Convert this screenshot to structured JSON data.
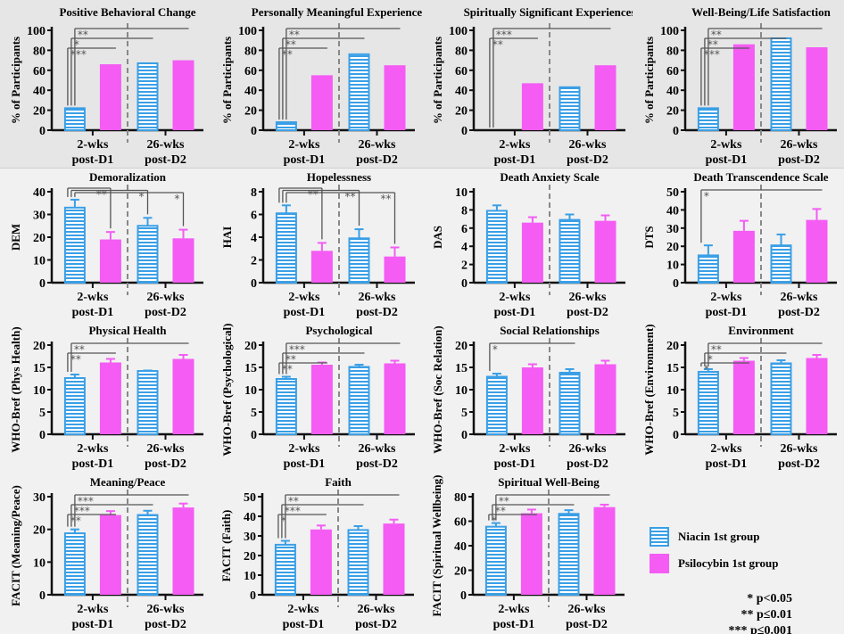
{
  "colors": {
    "niacin": "#3a9fe6",
    "psilocybin": "#f45cf4",
    "axis": "#111111",
    "bracket": "#555555",
    "divider": "#888888"
  },
  "legend": {
    "niacin": "Niacin 1st group",
    "psilocybin": "Psilocybin 1st group"
  },
  "pvalues": [
    "* p<0.05",
    "** p≤0.01",
    "*** p≤0.001"
  ],
  "chart_data": [
    {
      "type": "bar",
      "title": "Positive Behavioral Change",
      "ylabel": "% of Participants",
      "ylim": [
        0,
        100
      ],
      "ystep": 20,
      "categories": [
        "2-wks|post-D1",
        "26-wks|post-D2"
      ],
      "series": [
        {
          "name": "Niacin 1st group",
          "values": [
            22,
            67
          ]
        },
        {
          "name": "Psilocybin 1st group",
          "values": [
            66,
            70
          ]
        }
      ],
      "errors": null,
      "significance": [
        {
          "from": 0,
          "to": 1,
          "label": "***"
        },
        {
          "from": 0,
          "to": 2,
          "label": "*"
        },
        {
          "from": 0,
          "to": 3,
          "label": "**"
        }
      ]
    },
    {
      "type": "bar",
      "title": "Personally Meaningful Experiences",
      "ylabel": "% of Participants",
      "ylim": [
        0,
        100
      ],
      "ystep": 20,
      "categories": [
        "2-wks|post-D1",
        "26-wks|post-D2"
      ],
      "series": [
        {
          "name": "Niacin 1st group",
          "values": [
            8,
            76
          ]
        },
        {
          "name": "Psilocybin 1st group",
          "values": [
            55,
            65
          ]
        }
      ],
      "errors": null,
      "significance": [
        {
          "from": 0,
          "to": 1,
          "label": "**"
        },
        {
          "from": 0,
          "to": 2,
          "label": "**"
        },
        {
          "from": 0,
          "to": 3,
          "label": "**"
        }
      ]
    },
    {
      "type": "bar",
      "title": "Spiritually Significant Experiences",
      "ylabel": "% of Participants",
      "ylim": [
        0,
        100
      ],
      "ystep": 20,
      "categories": [
        "2-wks|post-D1",
        "26-wks|post-D2"
      ],
      "series": [
        {
          "name": "Niacin 1st group",
          "values": [
            0,
            43
          ]
        },
        {
          "name": "Psilocybin 1st group",
          "values": [
            47,
            65
          ]
        }
      ],
      "errors": null,
      "significance": [
        {
          "from": 0,
          "to": 1,
          "label": "**"
        },
        {
          "from": 0,
          "to": 3,
          "label": "***"
        }
      ]
    },
    {
      "type": "bar",
      "title": "Well-Being/Life Satisfaction",
      "ylabel": "% of Participants",
      "ylim": [
        0,
        100
      ],
      "ystep": 20,
      "categories": [
        "2-wks|post-D1",
        "26-wks|post-D2"
      ],
      "series": [
        {
          "name": "Niacin 1st group",
          "values": [
            22,
            92
          ]
        },
        {
          "name": "Psilocybin 1st group",
          "values": [
            86,
            83
          ]
        }
      ],
      "errors": null,
      "significance": [
        {
          "from": 0,
          "to": 1,
          "label": "***"
        },
        {
          "from": 0,
          "to": 2,
          "label": "**"
        },
        {
          "from": 0,
          "to": 3,
          "label": "**"
        }
      ]
    },
    {
      "type": "bar",
      "title": "Demoralization",
      "ylabel": "DEM",
      "ylim": [
        0,
        40
      ],
      "ystep": 10,
      "categories": [
        "2-wks|post-D1",
        "26-wks|post-D2"
      ],
      "series": [
        {
          "name": "Niacin 1st group",
          "values": [
            33,
            25
          ]
        },
        {
          "name": "Psilocybin 1st group",
          "values": [
            19,
            19.5
          ]
        }
      ],
      "errors": [
        [
          3.5,
          3.5
        ],
        [
          3.3,
          3.8
        ]
      ],
      "significance_style": "end",
      "significance": [
        {
          "from": 0,
          "to": 1,
          "label": "**"
        },
        {
          "from": 0,
          "to": 2,
          "label": "*"
        },
        {
          "from": 0,
          "to": 3,
          "label": "*"
        }
      ]
    },
    {
      "type": "bar",
      "title": "Hopelessness",
      "ylabel": "HAI",
      "ylim": [
        0,
        8
      ],
      "ystep": 2,
      "categories": [
        "2-wks|post-D1",
        "26-wks|post-D2"
      ],
      "series": [
        {
          "name": "Niacin 1st group",
          "values": [
            6.1,
            3.9
          ]
        },
        {
          "name": "Psilocybin 1st group",
          "values": [
            2.8,
            2.3
          ]
        }
      ],
      "errors": [
        [
          0.7,
          0.8
        ],
        [
          0.7,
          0.8
        ]
      ],
      "significance_style": "end",
      "significance": [
        {
          "from": 0,
          "to": 1,
          "label": "**"
        },
        {
          "from": 0,
          "to": 2,
          "label": "**"
        },
        {
          "from": 0,
          "to": 3,
          "label": "**"
        }
      ]
    },
    {
      "type": "bar",
      "title": "Death Anxiety Scale",
      "ylabel": "DAS",
      "ylim": [
        0,
        10
      ],
      "ystep": 2,
      "categories": [
        "2-wks|post-D1",
        "26-wks|post-D2"
      ],
      "series": [
        {
          "name": "Niacin 1st group",
          "values": [
            7.9,
            6.9
          ]
        },
        {
          "name": "Psilocybin 1st group",
          "values": [
            6.6,
            6.8
          ]
        }
      ],
      "errors": [
        [
          0.6,
          0.6
        ],
        [
          0.6,
          0.6
        ]
      ],
      "significance": []
    },
    {
      "type": "bar",
      "title": "Death Transcendence Scale",
      "ylabel": "DTS",
      "ylim": [
        0,
        50
      ],
      "ystep": 10,
      "categories": [
        "2-wks|post-D1",
        "26-wks|post-D2"
      ],
      "series": [
        {
          "name": "Niacin 1st group",
          "values": [
            15,
            20.5
          ]
        },
        {
          "name": "Psilocybin 1st group",
          "values": [
            28.5,
            34.5
          ]
        }
      ],
      "errors": [
        [
          5.5,
          6
        ],
        [
          5.5,
          6
        ]
      ],
      "significance": [
        {
          "from": 0,
          "to": 3,
          "label": "*"
        }
      ]
    },
    {
      "type": "bar",
      "title": "Physical Health",
      "ylabel": "WHO-Bref (Phys Health)",
      "ylim": [
        0,
        20
      ],
      "ystep": 5,
      "categories": [
        "2-wks|post-D1",
        "26-wks|post-D2"
      ],
      "series": [
        {
          "name": "Niacin 1st group",
          "values": [
            12.6,
            14.2
          ]
        },
        {
          "name": "Psilocybin 1st group",
          "values": [
            16.1,
            16.9
          ]
        }
      ],
      "errors": [
        [
          0.8,
          0.1
        ],
        [
          0.8,
          0.9
        ]
      ],
      "significance": [
        {
          "from": 0,
          "to": 1,
          "label": "**"
        },
        {
          "from": 0,
          "to": 3,
          "label": "**"
        }
      ]
    },
    {
      "type": "bar",
      "title": "Psychological",
      "ylabel": "WHO-Bref (Psychological)",
      "ylim": [
        0,
        20
      ],
      "ystep": 5,
      "categories": [
        "2-wks|post-D1",
        "26-wks|post-D2"
      ],
      "series": [
        {
          "name": "Niacin 1st group",
          "values": [
            12.4,
            15.1
          ]
        },
        {
          "name": "Psilocybin 1st group",
          "values": [
            15.6,
            15.9
          ]
        }
      ],
      "errors": [
        [
          0.5,
          0.5
        ],
        [
          0.5,
          0.6
        ]
      ],
      "significance": [
        {
          "from": 0,
          "to": 1,
          "label": "**"
        },
        {
          "from": 0,
          "to": 2,
          "label": "**"
        },
        {
          "from": 0,
          "to": 3,
          "label": "***"
        }
      ]
    },
    {
      "type": "bar",
      "title": "Social Relationships",
      "ylabel": "WHO-Bref (Soc Relation)",
      "ylim": [
        0,
        20
      ],
      "ystep": 5,
      "categories": [
        "2-wks|post-D1",
        "26-wks|post-D2"
      ],
      "series": [
        {
          "name": "Niacin 1st group",
          "values": [
            12.9,
            13.8
          ]
        },
        {
          "name": "Psilocybin 1st group",
          "values": [
            15,
            15.7
          ]
        }
      ],
      "errors": [
        [
          0.7,
          0.8
        ],
        [
          0.7,
          0.8
        ]
      ],
      "significance": [
        {
          "from": 0,
          "to": 2,
          "label": "*"
        }
      ]
    },
    {
      "type": "bar",
      "title": "Environment",
      "ylabel": "WHO-Bref (Environment)",
      "ylim": [
        0,
        20
      ],
      "ystep": 5,
      "categories": [
        "2-wks|post-D1",
        "26-wks|post-D2"
      ],
      "series": [
        {
          "name": "Niacin 1st group",
          "values": [
            14,
            15.9
          ]
        },
        {
          "name": "Psilocybin 1st group",
          "values": [
            16.5,
            17.1
          ]
        }
      ],
      "errors": [
        [
          0.6,
          0.7
        ],
        [
          0.6,
          0.7
        ]
      ],
      "significance": [
        {
          "from": 0,
          "to": 1,
          "label": "*"
        },
        {
          "from": 0,
          "to": 2,
          "label": "*"
        },
        {
          "from": 0,
          "to": 3,
          "label": "**"
        }
      ]
    },
    {
      "type": "bar",
      "title": "Meaning/Peace",
      "ylabel": "FACIT (Meaning/Peace)",
      "ylim": [
        0,
        30
      ],
      "ystep": 10,
      "categories": [
        "2-wks|post-D1",
        "26-wks|post-D2"
      ],
      "series": [
        {
          "name": "Niacin 1st group",
          "values": [
            18.8,
            24.4
          ]
        },
        {
          "name": "Psilocybin 1st group",
          "values": [
            24.4,
            26.7
          ]
        }
      ],
      "errors": [
        [
          1.2,
          1.3
        ],
        [
          1.2,
          1.2
        ]
      ],
      "significance": [
        {
          "from": 0,
          "to": 1,
          "label": "**"
        },
        {
          "from": 0,
          "to": 2,
          "label": "***"
        },
        {
          "from": 0,
          "to": 3,
          "label": "***"
        }
      ]
    },
    {
      "type": "bar",
      "title": "Faith",
      "ylabel": "FACIT (Faith)",
      "ylim": [
        0,
        50
      ],
      "ystep": 10,
      "categories": [
        "2-wks|post-D1",
        "26-wks|post-D2"
      ],
      "series": [
        {
          "name": "Niacin 1st group",
          "values": [
            25.5,
            33
          ]
        },
        {
          "name": "Psilocybin 1st group",
          "values": [
            33.3,
            36.3
          ]
        }
      ],
      "errors": [
        [
          2,
          2
        ],
        [
          2,
          2
        ]
      ],
      "significance": [
        {
          "from": 0,
          "to": 1,
          "label": "*"
        },
        {
          "from": 0,
          "to": 2,
          "label": "***"
        },
        {
          "from": 0,
          "to": 3,
          "label": "**"
        }
      ]
    },
    {
      "type": "bar",
      "title": "Spiritual Well-Being",
      "ylabel": "FACIT (Spiritual Wellbeing)",
      "ylim": [
        0,
        80
      ],
      "ystep": 20,
      "categories": [
        "2-wks|post-D1",
        "26-wks|post-D2"
      ],
      "series": [
        {
          "name": "Niacin 1st group",
          "values": [
            55.5,
            66
          ]
        },
        {
          "name": "Psilocybin 1st group",
          "values": [
            66.5,
            71.5
          ]
        }
      ],
      "errors": [
        [
          3,
          3
        ],
        [
          3,
          2
        ]
      ],
      "significance": [
        {
          "from": 0,
          "to": 1,
          "label": "*"
        },
        {
          "from": 0,
          "to": 2,
          "label": "**"
        },
        {
          "from": 0,
          "to": 3,
          "label": "**"
        }
      ]
    }
  ]
}
